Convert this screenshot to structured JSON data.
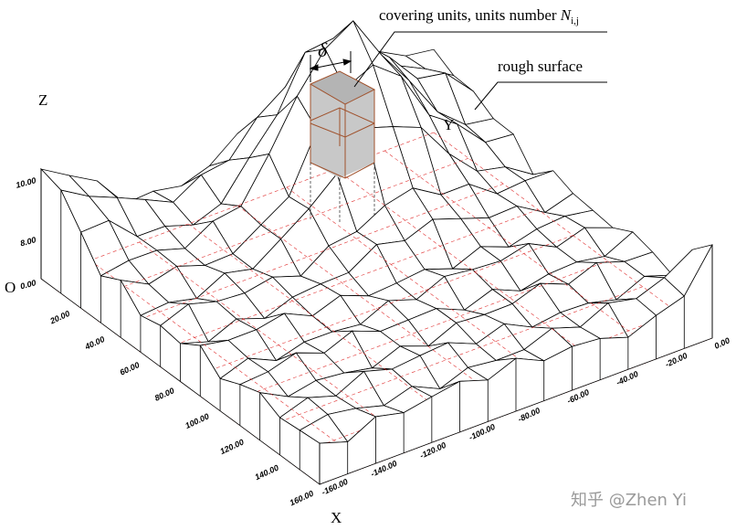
{
  "labels": {
    "covering_units": "covering units, units number",
    "n": "N",
    "n_sub": "i,j",
    "delta": "δ",
    "rough_surface": "rough surface",
    "z_axis": "Z",
    "y_axis": "Y",
    "x_axis": "X",
    "origin": "O"
  },
  "z_ticks": [
    "10.00",
    "8.00",
    "0.00"
  ],
  "x_ticks": [
    "20.00",
    "40.00",
    "60.00",
    "80.00",
    "100.00",
    "120.00",
    "140.00",
    "160.00"
  ],
  "y_ticks": [
    "-160.00",
    "-140.00",
    "-120.00",
    "-100.00",
    "-80.00",
    "-60.00",
    "-40.00",
    "-20.00",
    "0.00"
  ],
  "watermark": "知乎 @Zhen Yi"
}
